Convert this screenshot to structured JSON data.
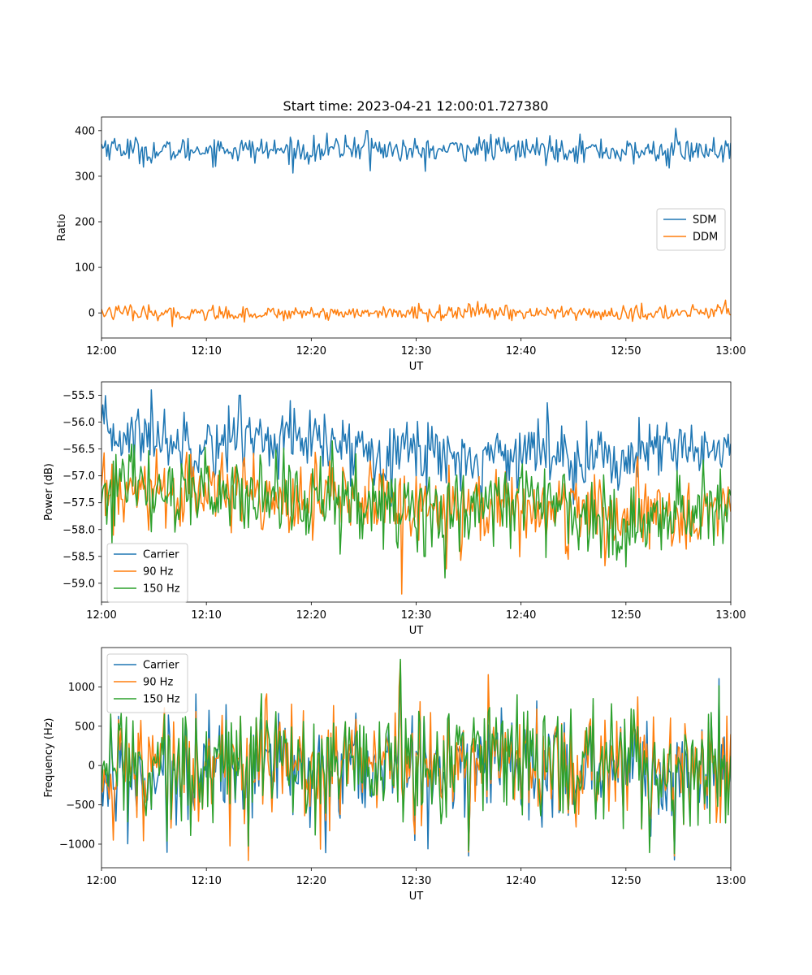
{
  "figure": {
    "title": "Start time: 2023-04-21 12:00:01.727380"
  },
  "chart_data": [
    {
      "type": "line",
      "title": "Start time: 2023-04-21 12:00:01.727380",
      "xlabel": "UT",
      "ylabel": "Ratio",
      "xlim": [
        "12:00",
        "13:00"
      ],
      "ylim": [
        -55,
        430
      ],
      "x_ticks": [
        "12:00",
        "12:10",
        "12:20",
        "12:30",
        "12:40",
        "12:50",
        "13:00"
      ],
      "y_ticks": [
        0,
        100,
        200,
        300,
        400
      ],
      "y_tick_labels": [
        "0",
        "100",
        "200",
        "300",
        "400"
      ],
      "grid": false,
      "legend_position": "center-right",
      "x": [
        "12:00",
        "12:05",
        "12:10",
        "12:15",
        "12:20",
        "12:25",
        "12:30",
        "12:35",
        "12:40",
        "12:45",
        "12:50",
        "12:55",
        "13:00"
      ],
      "series": [
        {
          "name": "SDM",
          "color": "#1f77b4",
          "values": [
            368,
            352,
            360,
            358,
            355,
            365,
            352,
            362,
            358,
            361,
            352,
            356,
            355
          ],
          "noise": 14,
          "spikes": [
            [
              25.3,
              400
            ],
            [
              25.6,
              312
            ],
            [
              54.7,
              405
            ],
            [
              54.1,
              318
            ]
          ]
        },
        {
          "name": "DDM",
          "color": "#ff7f0e",
          "values": [
            2,
            -3,
            0,
            -2,
            1,
            0,
            -1,
            2,
            1,
            0,
            -3,
            0,
            3
          ],
          "noise": 8,
          "spikes": [
            [
              6.7,
              -30
            ],
            [
              59.5,
              28
            ]
          ]
        }
      ]
    },
    {
      "type": "line",
      "title": "",
      "xlabel": "UT",
      "ylabel": "Power (dB)",
      "xlim": [
        "12:00",
        "13:00"
      ],
      "ylim": [
        -59.35,
        -55.25
      ],
      "x_ticks": [
        "12:00",
        "12:10",
        "12:20",
        "12:30",
        "12:40",
        "12:50",
        "13:00"
      ],
      "y_ticks": [
        -55.5,
        -56.0,
        -56.5,
        -57.0,
        -57.5,
        -58.0,
        -58.5,
        -59.0
      ],
      "y_tick_labels": [
        "−55.5",
        "−56.0",
        "−56.5",
        "−57.0",
        "−57.5",
        "−58.0",
        "−58.5",
        "−59.0"
      ],
      "grid": false,
      "legend_position": "lower-left",
      "x": [
        "12:00",
        "12:05",
        "12:10",
        "12:15",
        "12:20",
        "12:25",
        "12:30",
        "12:35",
        "12:40",
        "12:45",
        "12:50",
        "12:55",
        "13:00"
      ],
      "series": [
        {
          "name": "Carrier",
          "color": "#1f77b4",
          "values": [
            -56.2,
            -56.3,
            -56.4,
            -56.3,
            -56.4,
            -56.5,
            -56.5,
            -56.7,
            -56.5,
            -56.6,
            -56.7,
            -56.5,
            -56.5
          ],
          "noise": 0.3,
          "spikes": [
            [
              4.7,
              -55.4
            ],
            [
              13.2,
              -55.5
            ],
            [
              18.0,
              -55.6
            ],
            [
              36.3,
              -57.5
            ]
          ]
        },
        {
          "name": "90 Hz",
          "color": "#ff7f0e",
          "values": [
            -57.3,
            -57.4,
            -57.3,
            -57.3,
            -57.4,
            -57.4,
            -57.6,
            -57.5,
            -57.6,
            -57.7,
            -57.8,
            -57.7,
            -57.6
          ],
          "noise": 0.35,
          "spikes": [
            [
              28.6,
              -59.2
            ],
            [
              5.3,
              -56.5
            ]
          ]
        },
        {
          "name": "150 Hz",
          "color": "#2ca02c",
          "values": [
            -57.3,
            -57.2,
            -57.4,
            -57.3,
            -57.5,
            -57.5,
            -57.6,
            -57.6,
            -57.4,
            -57.6,
            -57.9,
            -57.6,
            -57.4
          ],
          "noise": 0.4,
          "spikes": [
            [
              32.7,
              -58.9
            ],
            [
              30.8,
              -58.5
            ]
          ]
        }
      ]
    },
    {
      "type": "line",
      "title": "",
      "xlabel": "UT",
      "ylabel": "Frequency (Hz)",
      "xlim": [
        "12:00",
        "13:00"
      ],
      "ylim": [
        -1300,
        1500
      ],
      "x_ticks": [
        "12:00",
        "12:10",
        "12:20",
        "12:30",
        "12:40",
        "12:50",
        "13:00"
      ],
      "y_ticks": [
        1000,
        500,
        0,
        -500,
        -1000
      ],
      "y_tick_labels": [
        "1000",
        "500",
        "0",
        "−500",
        "−1000"
      ],
      "grid": false,
      "legend_position": "upper-left",
      "x": [
        "12:00",
        "12:05",
        "12:10",
        "12:15",
        "12:20",
        "12:25",
        "12:30",
        "12:35",
        "12:40",
        "12:45",
        "12:50",
        "12:55",
        "13:00"
      ],
      "series": [
        {
          "name": "Carrier",
          "color": "#1f77b4",
          "values": [
            -50,
            -40,
            -60,
            -30,
            -50,
            -20,
            -40,
            -30,
            -40,
            -30,
            -50,
            -40,
            -30
          ],
          "noise": 380,
          "spikes": [
            [
              28.5,
              1280
            ],
            [
              35.0,
              -1150
            ],
            [
              54.6,
              -1200
            ],
            [
              31.1,
              -1060
            ]
          ]
        },
        {
          "name": "90 Hz",
          "color": "#ff7f0e",
          "values": [
            -10,
            0,
            -20,
            10,
            -10,
            20,
            0,
            10,
            0,
            10,
            -10,
            0,
            10
          ],
          "noise": 380,
          "spikes": [
            [
              28.5,
              1320
            ],
            [
              35.0,
              -1100
            ],
            [
              54.6,
              -1150
            ]
          ]
        },
        {
          "name": "150 Hz",
          "color": "#2ca02c",
          "values": [
            20,
            30,
            10,
            40,
            20,
            50,
            30,
            40,
            30,
            40,
            20,
            30,
            40
          ],
          "noise": 380,
          "spikes": [
            [
              28.5,
              1350
            ],
            [
              35.0,
              -1080
            ],
            [
              54.6,
              -1120
            ]
          ]
        }
      ]
    }
  ]
}
